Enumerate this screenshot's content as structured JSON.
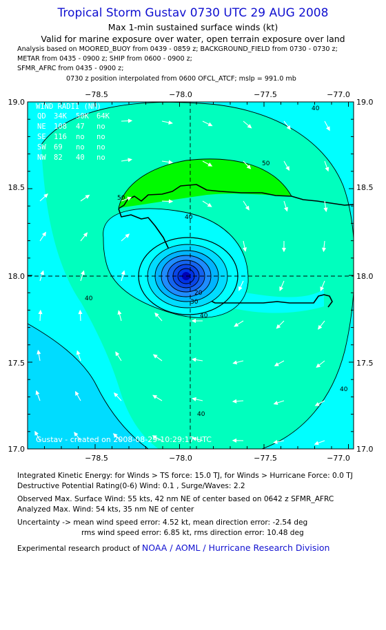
{
  "header": {
    "title": "Tropical Storm Gustav 0730 UTC 29 AUG 2008",
    "subtitle_1": "Max 1-min sustained surface winds (kt)",
    "subtitle_2": "Valid for marine exposure over water, open terrain exposure over land",
    "analysis_lines": [
      "Analysis based on  MOORED_BUOY from 0439 - 0859 z;  BACKGROUND_FIELD from 0730 - 0730 z;",
      "METAR from 0435 - 0900 z;  SHIP from 0600 - 0900 z;",
      "SFMR_AFRC from 0435 - 0900 z;"
    ],
    "position_line": "0730 z position interpolated from 0600 OFCL_ATCF; mslp = 991.0 mb"
  },
  "map": {
    "lon_ticks": [
      "−78.5",
      "−78.0",
      "−77.5",
      "−77.0"
    ],
    "lat_ticks": [
      "19.0",
      "18.5",
      "18.0",
      "17.5",
      "17.0"
    ],
    "wind_radii_title": "WIND RADII (NM)",
    "wind_radii_rows": [
      [
        "QD",
        "34K",
        "50K",
        "64K"
      ],
      [
        "NE",
        "108",
        "47",
        "no"
      ],
      [
        "SE",
        "116",
        "no",
        "no"
      ],
      [
        "SW",
        "69",
        "no",
        "no"
      ],
      [
        "NW",
        "82",
        "40",
        "no"
      ]
    ],
    "credit": "Gustav - created on 2008-08-29-10:29:17 UTC",
    "contour_labels": [
      "40",
      "50",
      "40",
      "40",
      "30",
      "20",
      "40",
      "40",
      "50",
      "40"
    ],
    "colors": {
      "water": "#00ffff",
      "c30": "#00dcff",
      "c40": "#00ffbe",
      "c50": "#00fa00",
      "c_inner": "#1e8cff",
      "c_core": "#0032e6"
    }
  },
  "footer": {
    "ike": "Integrated Kinetic Energy:  for Winds > TS force: 15.0 TJ,  for Winds > Hurricane Force: 0.0 TJ",
    "dpr": "Destructive Potential Rating(0-6)   Wind: 0.1 , Surge/Waves: 2.2",
    "obs_max": "Observed Max. Surface Wind: 55 kts, 42 nm NE of center based on 0642 z SFMR_AFRC",
    "ana_max": "Analyzed Max. Wind: 54 kts, 35 nm NE of center",
    "unc_1": "Uncertainty -> mean wind speed error: 4.52 kt,   mean direction error:  -2.54 deg",
    "unc_2": "rms wind speed error: 6.85 kt,   rms direction error: 10.48 deg",
    "product_prefix": "Experimental research product of",
    "product_org": "NOAA / AOML / Hurricane Research Division"
  }
}
